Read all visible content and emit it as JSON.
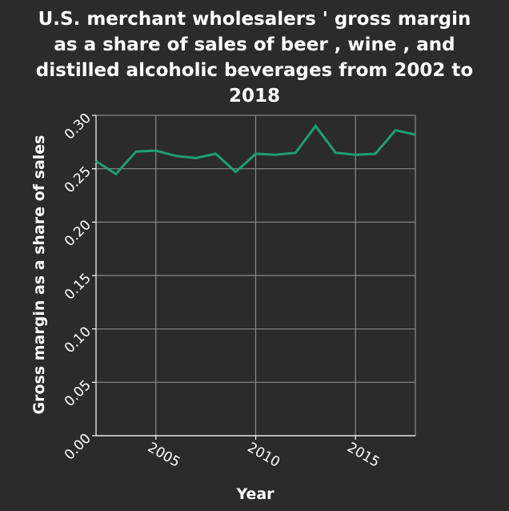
{
  "chart_data": {
    "type": "line",
    "title_lines": [
      "U.S. merchant wholesalers ' gross margin",
      "as a share of sales of beer , wine , and",
      "distilled alcoholic beverages from 2002 to",
      "2018"
    ],
    "xlabel": "Year",
    "ylabel": "Gross margin as a share of sales",
    "xlim": [
      2002,
      2018
    ],
    "ylim": [
      0.0,
      0.3
    ],
    "xticks": [
      2005,
      2010,
      2015
    ],
    "xtick_labels": [
      "2005",
      "2010",
      "2015"
    ],
    "yticks": [
      0.0,
      0.05,
      0.1,
      0.15,
      0.2,
      0.25,
      0.3
    ],
    "ytick_labels": [
      "0.00",
      "0.05",
      "0.10",
      "0.15",
      "0.20",
      "0.25",
      "0.30"
    ],
    "grid": true,
    "series": [
      {
        "color": "#1f9e74",
        "x": [
          2002,
          2003,
          2004,
          2005,
          2006,
          2007,
          2008,
          2009,
          2010,
          2011,
          2012,
          2013,
          2014,
          2015,
          2016,
          2017,
          2018
        ],
        "y": [
          0.257,
          0.245,
          0.266,
          0.267,
          0.262,
          0.26,
          0.264,
          0.247,
          0.264,
          0.263,
          0.265,
          0.29,
          0.265,
          0.263,
          0.264,
          0.286,
          0.282
        ]
      }
    ]
  }
}
